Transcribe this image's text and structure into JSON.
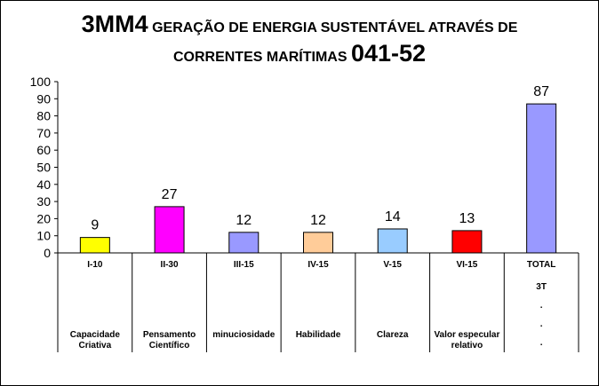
{
  "title": {
    "code": "3MM4",
    "text_line1": "GERAÇÃO DE ENERGIA SUSTENTÁVEL ATRAVÉS DE",
    "text_line2": "CORRENTES MARÍTIMAS",
    "number": "041-52"
  },
  "chart_data": {
    "type": "bar",
    "title": "3MM4 GERAÇÃO DE ENERGIA SUSTENTÁVEL ATRAVÉS DE CORRENTES MARÍTIMAS 041-52",
    "categories": [
      "I-10",
      "II-30",
      "III-15",
      "IV-15",
      "V-15",
      "VI-15",
      "TOTAL"
    ],
    "values": [
      9,
      27,
      12,
      12,
      14,
      13,
      87
    ],
    "colors": [
      "#ffff00",
      "#ff00ff",
      "#9999ff",
      "#ffcc99",
      "#99ccff",
      "#ff0000",
      "#9999ff"
    ],
    "ylim": [
      0,
      100
    ],
    "yticks": [
      0,
      10,
      20,
      30,
      40,
      50,
      60,
      70,
      80,
      90,
      100
    ],
    "grid": false,
    "xlabel": "",
    "ylabel": "",
    "sublabels": [
      "",
      "",
      "",
      "",
      "",
      "",
      "3T\n.\n.\n."
    ],
    "descriptions": [
      "Capacidade Criativa",
      "Pensamento Científico",
      "minuciosidade",
      "Habilidade",
      "Clareza",
      "Valor especular relativo",
      ""
    ]
  }
}
